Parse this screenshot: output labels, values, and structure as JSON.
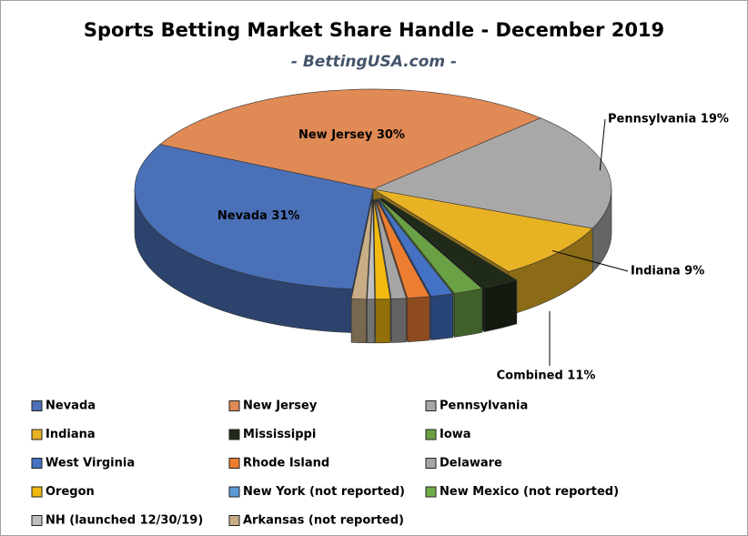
{
  "chart_data": {
    "type": "pie3d",
    "title": "Sports Betting Market Share Handle - December 2019",
    "subtitle": "- BettingUSA.com -",
    "categories": [
      "Nevada",
      "New Jersey",
      "Pennsylvania",
      "Indiana",
      "Mississippi",
      "Iowa",
      "West Virginia",
      "Rhode Island",
      "Delaware",
      "Oregon",
      "New York (not reported)",
      "New Mexico (not reported)",
      "NH (launched 12/30/19)",
      "Arkansas (not reported)"
    ],
    "values": [
      31,
      30,
      19,
      9,
      2.5,
      2,
      1.5,
      1.5,
      1,
      1,
      0,
      0,
      0.5,
      1
    ],
    "value_labels": [
      "Nevada 31%",
      "New Jersey 30%",
      "Pennsylvania 19%",
      "Indiana 9%",
      null,
      null,
      null,
      null,
      null,
      null,
      null,
      null,
      null,
      null
    ],
    "colors": [
      "#4a70b8",
      "#e08a55",
      "#a8a8a8",
      "#e8b225",
      "#1f2a18",
      "#6aa145",
      "#4472c4",
      "#ed7d31",
      "#a5a5a5",
      "#f2b90f",
      "#5b9bd5",
      "#70ad47",
      "#bfbfbf",
      "#c8ad86"
    ],
    "annotations": [
      {
        "text": "Combined 11%"
      }
    ],
    "legend": "bottom"
  }
}
